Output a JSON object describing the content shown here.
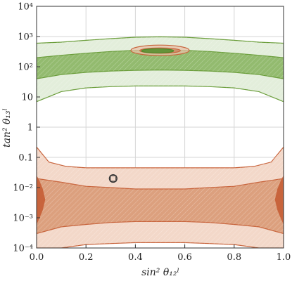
{
  "chart_data": {
    "type": "area",
    "xlabel": "sin² θ₁₂ˡ",
    "ylabel": "tan² θ₁₃ˡ",
    "xlim": [
      0.0,
      1.0
    ],
    "ylim": [
      0.0001,
      10000
    ],
    "y_scale": "log",
    "grid": true,
    "x_ticks": [
      {
        "value": 0.0,
        "label": "0.0"
      },
      {
        "value": 0.2,
        "label": "0.2"
      },
      {
        "value": 0.4,
        "label": "0.4"
      },
      {
        "value": 0.6,
        "label": "0.6"
      },
      {
        "value": 0.8,
        "label": "0.8"
      },
      {
        "value": 1.0,
        "label": "1.0"
      }
    ],
    "y_ticks": [
      {
        "value": 0.0001,
        "label": "10⁻⁴"
      },
      {
        "value": 0.001,
        "label": "10⁻³"
      },
      {
        "value": 0.01,
        "label": "10⁻²"
      },
      {
        "value": 0.1,
        "label": "0.1"
      },
      {
        "value": 1,
        "label": "1"
      },
      {
        "value": 10,
        "label": "10"
      },
      {
        "value": 100,
        "label": "10²"
      },
      {
        "value": 1000,
        "label": "10³"
      },
      {
        "value": 10000,
        "label": "10⁴"
      }
    ],
    "regions": [
      {
        "color": "#6a9d3a",
        "fill": "#e3eedb",
        "hatch": true,
        "upper": [
          [
            0.0,
            600
          ],
          [
            0.1,
            650
          ],
          [
            0.2,
            750
          ],
          [
            0.3,
            850
          ],
          [
            0.4,
            950
          ],
          [
            0.5,
            980
          ],
          [
            0.6,
            950
          ],
          [
            0.7,
            850
          ],
          [
            0.8,
            750
          ],
          [
            0.9,
            650
          ],
          [
            1.0,
            600
          ]
        ],
        "lower": [
          [
            0.0,
            7
          ],
          [
            0.1,
            15
          ],
          [
            0.2,
            20
          ],
          [
            0.3,
            22
          ],
          [
            0.4,
            23
          ],
          [
            0.5,
            23
          ],
          [
            0.6,
            23
          ],
          [
            0.7,
            22
          ],
          [
            0.8,
            20
          ],
          [
            0.9,
            15
          ],
          [
            1.0,
            7
          ]
        ]
      },
      {
        "color": "#6a9d3a",
        "fill": "#93bb6f",
        "hatch": true,
        "upper": [
          [
            0.0,
            200
          ],
          [
            0.1,
            240
          ],
          [
            0.2,
            280
          ],
          [
            0.3,
            320
          ],
          [
            0.4,
            350
          ],
          [
            0.5,
            360
          ],
          [
            0.6,
            350
          ],
          [
            0.7,
            320
          ],
          [
            0.8,
            280
          ],
          [
            0.9,
            240
          ],
          [
            1.0,
            200
          ]
        ],
        "lower": [
          [
            0.0,
            40
          ],
          [
            0.1,
            55
          ],
          [
            0.2,
            65
          ],
          [
            0.3,
            72
          ],
          [
            0.4,
            76
          ],
          [
            0.5,
            78
          ],
          [
            0.6,
            76
          ],
          [
            0.7,
            72
          ],
          [
            0.8,
            65
          ],
          [
            0.9,
            55
          ],
          [
            1.0,
            40
          ]
        ]
      },
      {
        "color": "#c8643c",
        "fill": "#f3d8c9",
        "hatch": true,
        "upper": [
          [
            0.0,
            0.22
          ],
          [
            0.05,
            0.07
          ],
          [
            0.12,
            0.05
          ],
          [
            0.2,
            0.045
          ],
          [
            0.3,
            0.045
          ],
          [
            0.4,
            0.045
          ],
          [
            0.5,
            0.045
          ],
          [
            0.6,
            0.045
          ],
          [
            0.7,
            0.045
          ],
          [
            0.8,
            0.045
          ],
          [
            0.88,
            0.05
          ],
          [
            0.95,
            0.07
          ],
          [
            1.0,
            0.22
          ]
        ],
        "lower": [
          [
            0.0,
            0.0001
          ],
          [
            0.1,
            0.0001
          ],
          [
            0.2,
            0.00013
          ],
          [
            0.3,
            0.00014
          ],
          [
            0.4,
            0.00015
          ],
          [
            0.5,
            0.00015
          ],
          [
            0.6,
            0.00015
          ],
          [
            0.7,
            0.00014
          ],
          [
            0.8,
            0.00013
          ],
          [
            0.9,
            0.0001
          ],
          [
            1.0,
            0.0001
          ]
        ]
      },
      {
        "color": "#c8643c",
        "fill": "#dca07e",
        "hatch": true,
        "upper": [
          [
            0.0,
            0.02
          ],
          [
            0.1,
            0.015
          ],
          [
            0.2,
            0.011
          ],
          [
            0.3,
            0.01
          ],
          [
            0.4,
            0.009
          ],
          [
            0.5,
            0.009
          ],
          [
            0.6,
            0.009
          ],
          [
            0.7,
            0.01
          ],
          [
            0.8,
            0.011
          ],
          [
            0.9,
            0.015
          ],
          [
            1.0,
            0.02
          ]
        ],
        "lower": [
          [
            0.0,
            0.0003
          ],
          [
            0.1,
            0.0005
          ],
          [
            0.2,
            0.0006
          ],
          [
            0.3,
            0.0007
          ],
          [
            0.4,
            0.00075
          ],
          [
            0.5,
            0.00075
          ],
          [
            0.6,
            0.00075
          ],
          [
            0.7,
            0.0007
          ],
          [
            0.8,
            0.0006
          ],
          [
            0.9,
            0.0005
          ],
          [
            1.0,
            0.0003
          ]
        ]
      }
    ],
    "blobs": [
      {
        "kind": "edge",
        "fill": "#c8643c",
        "points": [
          [
            0.0,
            0.025
          ],
          [
            0.01,
            0.018
          ],
          [
            0.025,
            0.009
          ],
          [
            0.035,
            0.004
          ],
          [
            0.025,
            0.0018
          ],
          [
            0.01,
            0.0009
          ],
          [
            0.0,
            0.0006
          ]
        ]
      },
      {
        "kind": "edge",
        "fill": "#c8643c",
        "points": [
          [
            1.0,
            0.025
          ],
          [
            0.99,
            0.018
          ],
          [
            0.975,
            0.009
          ],
          [
            0.965,
            0.004
          ],
          [
            0.975,
            0.0018
          ],
          [
            0.99,
            0.0009
          ],
          [
            1.0,
            0.0006
          ]
        ]
      },
      {
        "kind": "ellipse",
        "cx": 0.5,
        "cy": 350,
        "rx": 0.118,
        "ry_top": 520,
        "ry_bottom": 235,
        "stroke": "#c8643c",
        "fill": "#e8c1a8",
        "opacity": 0.75
      },
      {
        "kind": "ellipse",
        "cx": 0.5,
        "cy": 340,
        "rx": 0.082,
        "ry_top": 420,
        "ry_bottom": 280,
        "stroke": "#c8643c",
        "fill": "#cc8a64",
        "opacity": 0.85
      },
      {
        "kind": "ellipse",
        "cx": 0.49,
        "cy": 335,
        "rx": 0.065,
        "ry_top": 395,
        "ry_bottom": 285,
        "stroke": "#4f8a2a",
        "fill": "#5f9438",
        "opacity": 0.95
      }
    ],
    "marker": {
      "x": 0.31,
      "y": 0.02,
      "shape": "square-in-circle",
      "color": "#333333"
    }
  }
}
